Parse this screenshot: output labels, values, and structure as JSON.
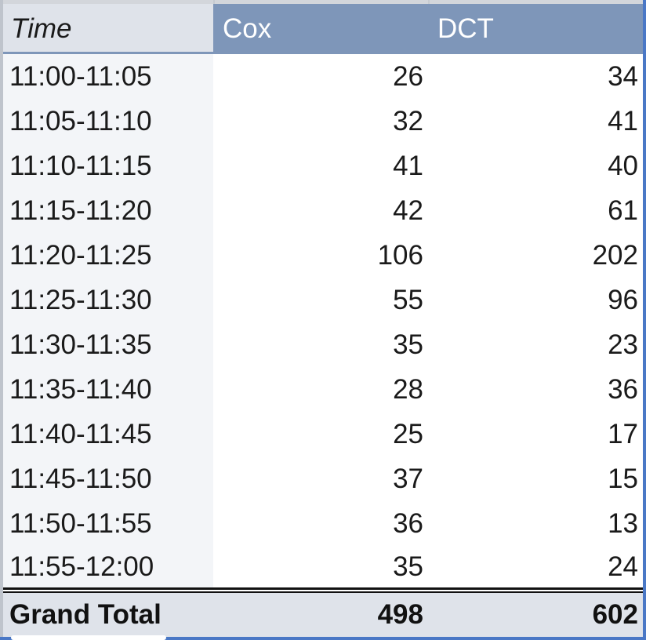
{
  "table": {
    "headers": {
      "time": "Time",
      "cox": "Cox",
      "dct": "DCT"
    },
    "rows": [
      {
        "time": "11:00-11:05",
        "cox": "26",
        "dct": "34"
      },
      {
        "time": "11:05-11:10",
        "cox": "32",
        "dct": "41"
      },
      {
        "time": "11:10-11:15",
        "cox": "41",
        "dct": "40"
      },
      {
        "time": "11:15-11:20",
        "cox": "42",
        "dct": "61"
      },
      {
        "time": "11:20-11:25",
        "cox": "106",
        "dct": "202"
      },
      {
        "time": "11:25-11:30",
        "cox": "55",
        "dct": "96"
      },
      {
        "time": "11:30-11:35",
        "cox": "35",
        "dct": "23"
      },
      {
        "time": "11:35-11:40",
        "cox": "28",
        "dct": "36"
      },
      {
        "time": "11:40-11:45",
        "cox": "25",
        "dct": "17"
      },
      {
        "time": "11:45-11:50",
        "cox": "37",
        "dct": "15"
      },
      {
        "time": "11:50-11:55",
        "cox": "36",
        "dct": "13"
      },
      {
        "time": "11:55-12:00",
        "cox": "35",
        "dct": "24"
      }
    ],
    "total": {
      "label": "Grand Total",
      "cox": "498",
      "dct": "602"
    }
  },
  "colors": {
    "header_bg": "#7e96b9",
    "time_header_bg": "#dfe3ea",
    "time_column_bg": "#f3f5f8",
    "total_bg": "#dfe3ea",
    "selection_border": "#4a78c6"
  }
}
